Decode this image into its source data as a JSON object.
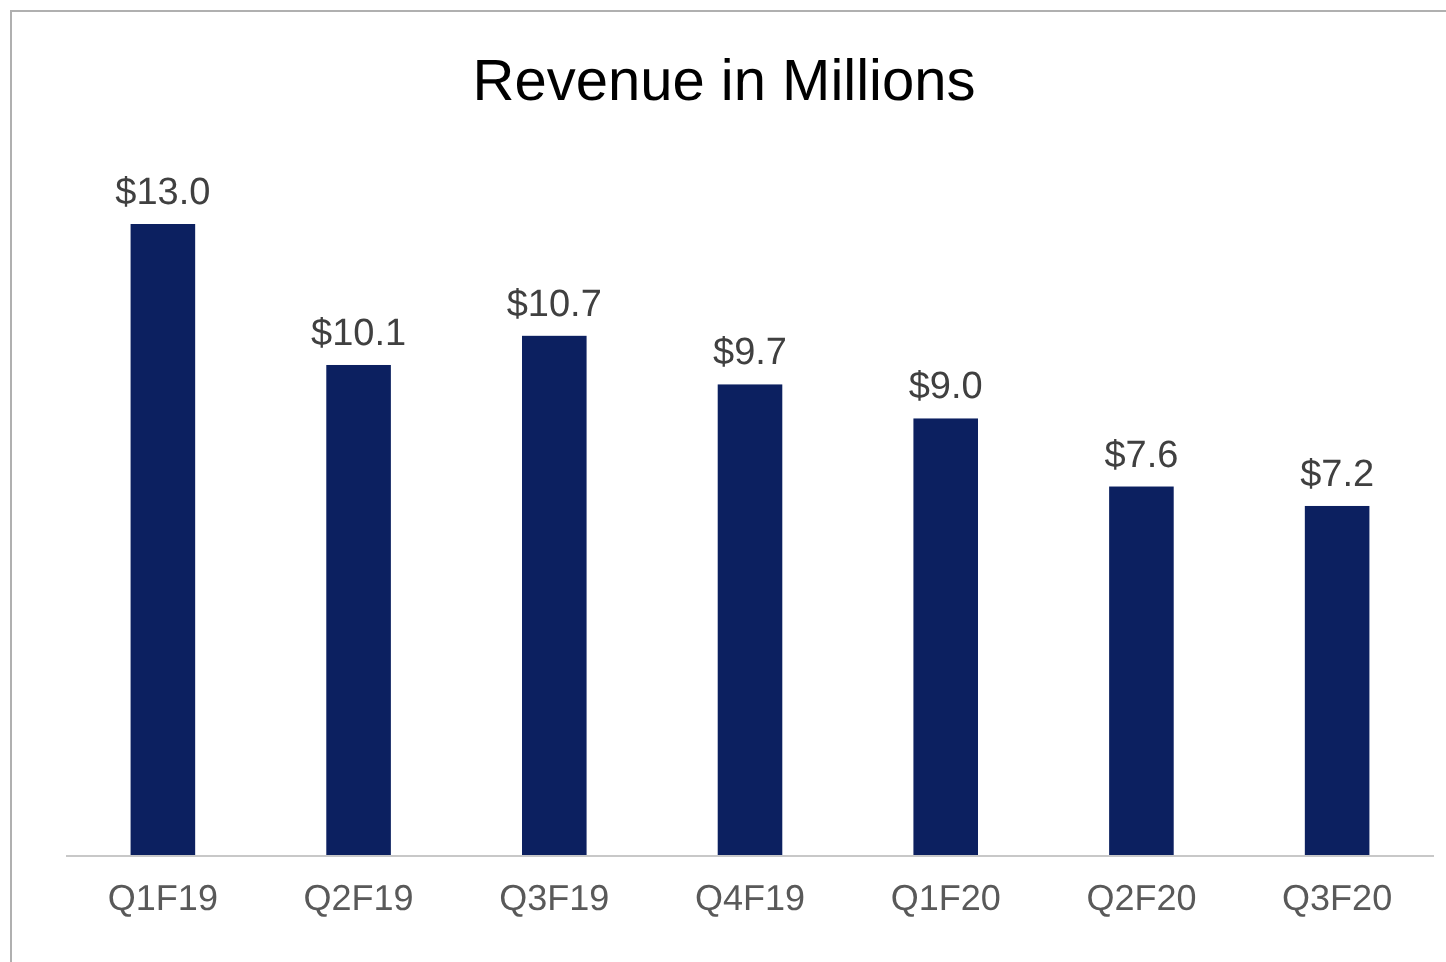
{
  "chart_data": {
    "type": "bar",
    "title": "Revenue in Millions",
    "categories": [
      "Q1F19",
      "Q2F19",
      "Q3F19",
      "Q4F19",
      "Q1F20",
      "Q2F20",
      "Q3F20"
    ],
    "values": [
      13.0,
      10.1,
      10.7,
      9.7,
      9.0,
      7.6,
      7.2
    ],
    "value_labels": [
      "$13.0",
      "$10.1",
      "$10.7",
      "$9.7",
      "$9.0",
      "$7.6",
      "$7.2"
    ],
    "color": "#0c2060"
  }
}
